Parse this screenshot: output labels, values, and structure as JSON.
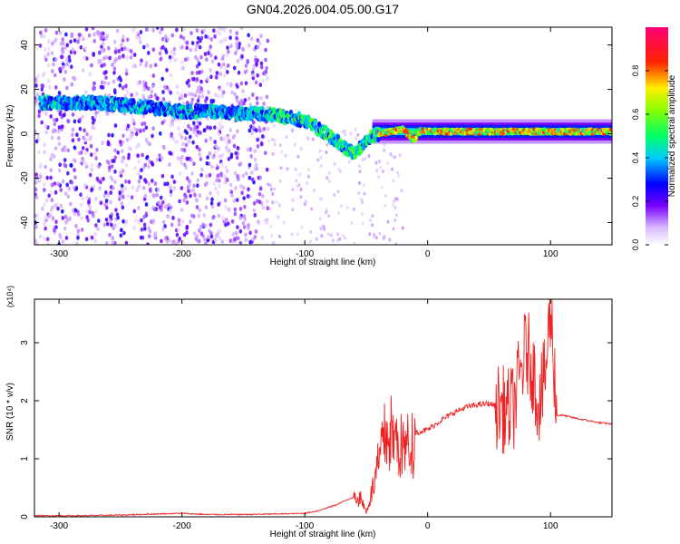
{
  "title": "GN04.2026.004.05.00.G17",
  "chart_data": [
    {
      "type": "heatmap",
      "xlabel": "Height of straight line (km)",
      "ylabel": "Frequency (Hz)",
      "xlim": [
        -320,
        150
      ],
      "ylim": [
        -50,
        48
      ],
      "x_ticks": [
        -300,
        -200,
        -100,
        0,
        100
      ],
      "y_ticks": [
        -40,
        -20,
        0,
        20,
        40
      ],
      "colorbar": {
        "label": "Normalized spectral amplitude",
        "range": [
          0,
          1
        ],
        "ticks": [
          "0.0",
          "0.2",
          "0.4",
          "0.6",
          "0.8"
        ],
        "colors": [
          "#ffffff",
          "#7700ff",
          "#0000ff",
          "#00ffff",
          "#00ff00",
          "#ffff00",
          "#ff0000",
          "#ff0088"
        ]
      },
      "ridge": {
        "x": [
          -300,
          -270,
          -250,
          -230,
          -200,
          -175,
          -150,
          -130,
          -120,
          -100,
          -85,
          -70,
          -60,
          -50,
          -40,
          -30,
          -20,
          -12,
          -5,
          0,
          10,
          40,
          80,
          110,
          150
        ],
        "frequency": [
          14,
          14,
          13,
          12,
          10,
          10,
          9,
          9,
          8,
          6,
          1,
          -5,
          -9,
          -3,
          0,
          1,
          2,
          -3,
          2,
          1,
          1,
          1,
          1,
          1,
          1
        ]
      }
    },
    {
      "type": "line",
      "xlabel": "Height of straight line (km)",
      "ylabel": "SNR (10 * v/v)",
      "y_multiplier": "(x10⁴)",
      "xlim": [
        -320,
        150
      ],
      "ylim": [
        0,
        3.75
      ],
      "x_ticks": [
        -300,
        -200,
        -100,
        0,
        100
      ],
      "y_ticks": [
        0,
        1,
        2,
        3
      ],
      "color": "#ee2222",
      "series": [
        {
          "x": [
            -320,
            -280,
            -250,
            -220,
            -200,
            -180,
            -150,
            -120,
            -100,
            -90,
            -75,
            -65,
            -55,
            -50,
            -45,
            -40,
            -35,
            -30,
            -25,
            -20,
            -10,
            0,
            10,
            20,
            30,
            40,
            50,
            60,
            65,
            70,
            75,
            80,
            85,
            90,
            95,
            100,
            103,
            105,
            110,
            120,
            130,
            140,
            150
          ],
          "y": [
            0.02,
            0.02,
            0.03,
            0.05,
            0.06,
            0.04,
            0.04,
            0.05,
            0.06,
            0.1,
            0.2,
            0.3,
            0.38,
            0.1,
            0.5,
            1.0,
            1.5,
            1.6,
            1.4,
            1.3,
            1.45,
            1.5,
            1.65,
            1.78,
            1.88,
            1.93,
            1.95,
            1.88,
            1.8,
            1.9,
            2.4,
            2.9,
            2.6,
            2.0,
            2.3,
            3.55,
            2.6,
            1.75,
            1.75,
            1.7,
            1.66,
            1.62,
            1.6
          ]
        }
      ]
    }
  ]
}
